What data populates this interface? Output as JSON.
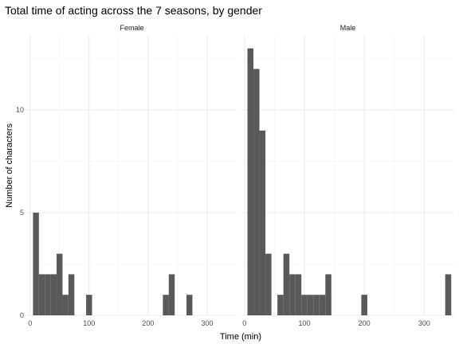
{
  "chart_data": {
    "type": "bar",
    "title": "Total time of acting across the 7 seasons, by gender",
    "xlabel": "Time (min)",
    "ylabel": "Number of characters",
    "bin_width": 10,
    "xlim": [
      -5,
      350
    ],
    "ylim": [
      0,
      13
    ],
    "x_ticks": [
      0,
      100,
      200,
      300
    ],
    "y_ticks": [
      0,
      5,
      10
    ],
    "grid": true,
    "facets": [
      {
        "name": "Female",
        "bins": [
          {
            "x": 10,
            "count": 5
          },
          {
            "x": 20,
            "count": 2
          },
          {
            "x": 30,
            "count": 2
          },
          {
            "x": 40,
            "count": 2
          },
          {
            "x": 50,
            "count": 3
          },
          {
            "x": 60,
            "count": 1
          },
          {
            "x": 70,
            "count": 2
          },
          {
            "x": 100,
            "count": 1
          },
          {
            "x": 230,
            "count": 1
          },
          {
            "x": 240,
            "count": 2
          },
          {
            "x": 270,
            "count": 1
          }
        ]
      },
      {
        "name": "Male",
        "bins": [
          {
            "x": 10,
            "count": 13
          },
          {
            "x": 20,
            "count": 12
          },
          {
            "x": 30,
            "count": 9
          },
          {
            "x": 40,
            "count": 3
          },
          {
            "x": 60,
            "count": 1
          },
          {
            "x": 70,
            "count": 3
          },
          {
            "x": 80,
            "count": 2
          },
          {
            "x": 90,
            "count": 2
          },
          {
            "x": 100,
            "count": 1
          },
          {
            "x": 110,
            "count": 1
          },
          {
            "x": 120,
            "count": 1
          },
          {
            "x": 130,
            "count": 1
          },
          {
            "x": 140,
            "count": 2
          },
          {
            "x": 200,
            "count": 1
          },
          {
            "x": 340,
            "count": 2
          }
        ]
      }
    ]
  }
}
